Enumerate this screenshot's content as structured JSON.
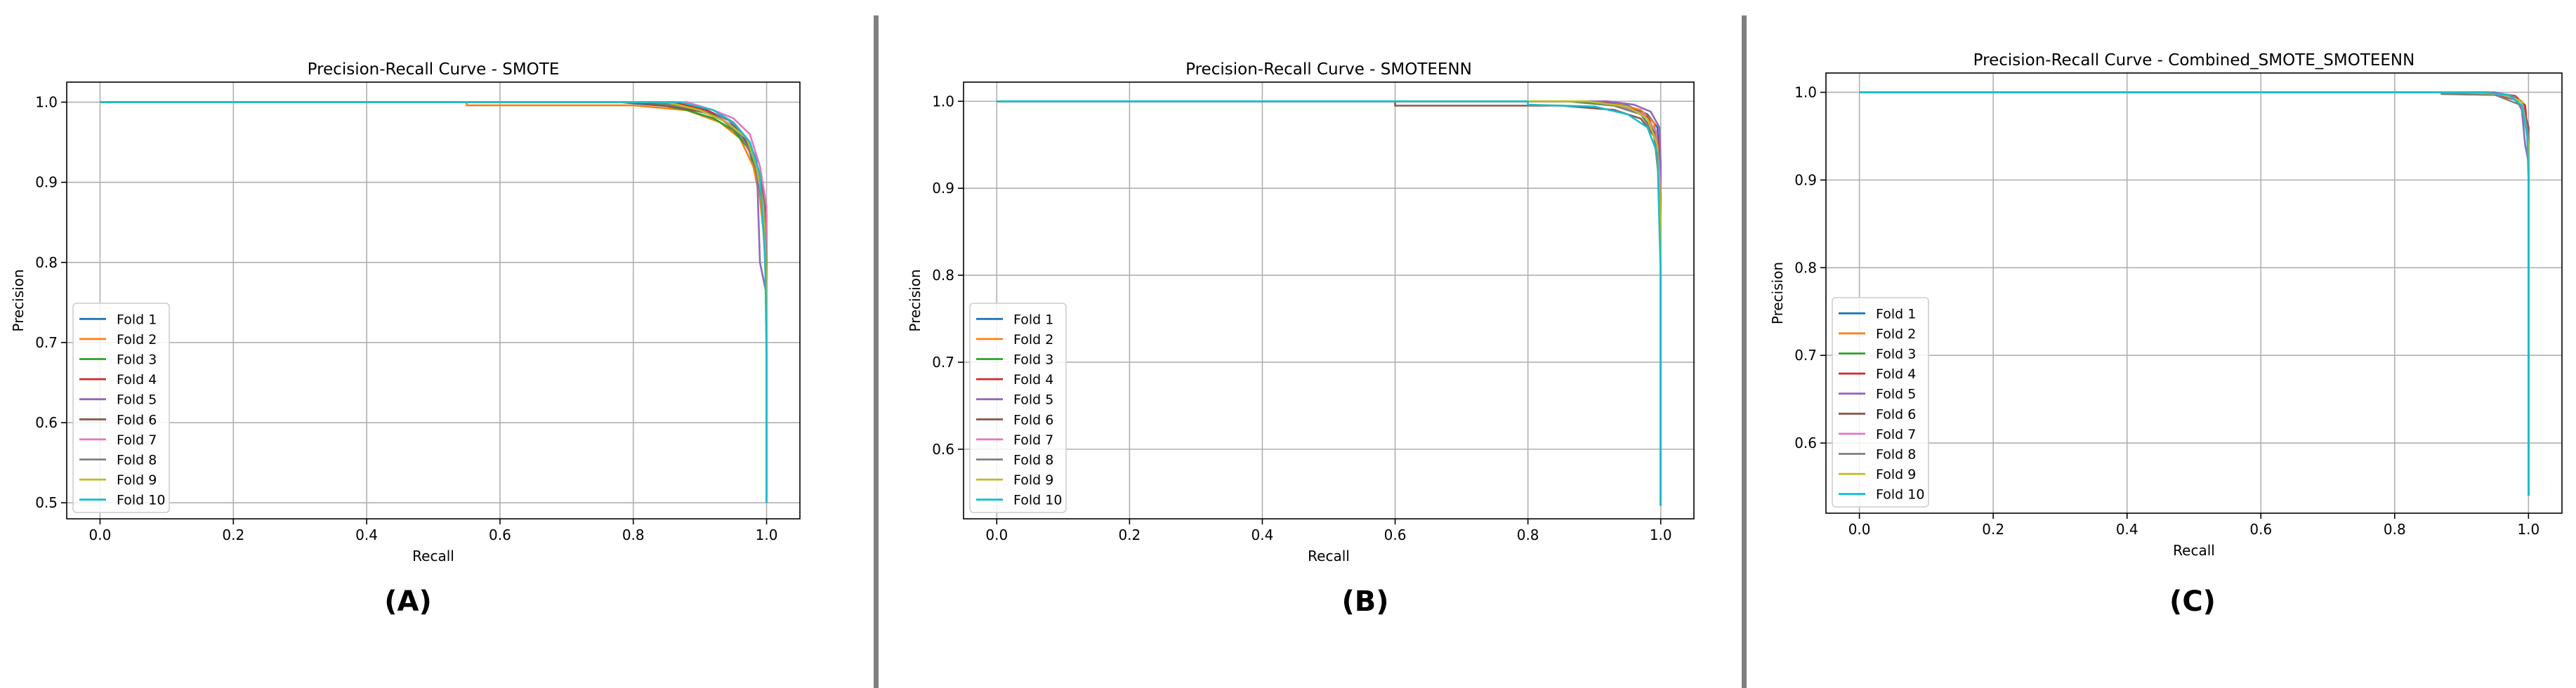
{
  "figure": {
    "legend_entries": [
      "Fold 1",
      "Fold 2",
      "Fold 3",
      "Fold 4",
      "Fold 5",
      "Fold 6",
      "Fold 7",
      "Fold 8",
      "Fold 9",
      "Fold 10"
    ],
    "series_colors": [
      "#1f77b4",
      "#ff7f0e",
      "#2ca02c",
      "#d62728",
      "#9467bd",
      "#8c564b",
      "#e377c2",
      "#7f7f7f",
      "#bcbd22",
      "#17becf"
    ]
  },
  "chart_data": [
    {
      "type": "line",
      "panel_label": "(A)",
      "title": "Precision-Recall Curve - SMOTE",
      "xlabel": "Recall",
      "ylabel": "Precision",
      "xlim": [
        -0.05,
        1.05
      ],
      "ylim": [
        0.48,
        1.025
      ],
      "xticks": [
        0.0,
        0.2,
        0.4,
        0.6,
        0.8,
        1.0
      ],
      "xtick_labels": [
        "0.0",
        "0.2",
        "0.4",
        "0.6",
        "0.8",
        "1.0"
      ],
      "yticks": [
        0.5,
        0.6,
        0.7,
        0.8,
        0.9,
        1.0
      ],
      "ytick_labels": [
        "0.5",
        "0.6",
        "0.7",
        "0.8",
        "0.9",
        "1.0"
      ],
      "grid": true,
      "legend_position": "lower-left",
      "series": [
        {
          "name": "Fold 1",
          "x": [
            0,
            0.78,
            0.85,
            0.9,
            0.94,
            0.97,
            0.985,
            0.995,
            1.0,
            1.0
          ],
          "y": [
            1,
            1,
            0.995,
            0.99,
            0.975,
            0.95,
            0.91,
            0.86,
            0.75,
            0.5
          ]
        },
        {
          "name": "Fold 2",
          "x": [
            0,
            0.55,
            0.55,
            0.8,
            0.88,
            0.93,
            0.96,
            0.98,
            0.99,
            1.0,
            1.0
          ],
          "y": [
            1,
            1,
            0.996,
            0.996,
            0.99,
            0.975,
            0.955,
            0.92,
            0.88,
            0.8,
            0.5
          ]
        },
        {
          "name": "Fold 3",
          "x": [
            0,
            0.82,
            0.88,
            0.92,
            0.95,
            0.975,
            0.99,
            1.0,
            1.0
          ],
          "y": [
            1,
            1,
            0.99,
            0.98,
            0.965,
            0.94,
            0.9,
            0.84,
            0.5
          ]
        },
        {
          "name": "Fold 4",
          "x": [
            0,
            0.86,
            0.91,
            0.95,
            0.975,
            0.99,
            1.0,
            1.0
          ],
          "y": [
            1,
            1,
            0.99,
            0.975,
            0.95,
            0.91,
            0.86,
            0.5
          ]
        },
        {
          "name": "Fold 5",
          "x": [
            0,
            0.84,
            0.9,
            0.94,
            0.965,
            0.985,
            0.99,
            1.0,
            1.0
          ],
          "y": [
            1,
            1,
            0.99,
            0.98,
            0.96,
            0.93,
            0.8,
            0.76,
            0.5
          ]
        },
        {
          "name": "Fold 6",
          "x": [
            0,
            0.8,
            0.87,
            0.92,
            0.96,
            0.98,
            0.995,
            1.0,
            1.0
          ],
          "y": [
            1,
            1,
            0.993,
            0.985,
            0.965,
            0.935,
            0.89,
            0.82,
            0.5
          ]
        },
        {
          "name": "Fold 7",
          "x": [
            0,
            0.88,
            0.92,
            0.95,
            0.975,
            0.99,
            1.0,
            1.0
          ],
          "y": [
            1,
            1,
            0.99,
            0.98,
            0.96,
            0.92,
            0.87,
            0.5
          ]
        },
        {
          "name": "Fold 8",
          "x": [
            0,
            0.83,
            0.89,
            0.93,
            0.96,
            0.98,
            0.995,
            1.0,
            1.0
          ],
          "y": [
            1,
            1,
            0.992,
            0.98,
            0.96,
            0.93,
            0.88,
            0.8,
            0.5
          ]
        },
        {
          "name": "Fold 9",
          "x": [
            0,
            0.85,
            0.9,
            0.94,
            0.97,
            0.985,
            0.995,
            1.0,
            1.0
          ],
          "y": [
            1,
            1,
            0.99,
            0.975,
            0.955,
            0.92,
            0.87,
            0.78,
            0.5
          ]
        },
        {
          "name": "Fold 10",
          "x": [
            0,
            0.87,
            0.92,
            0.95,
            0.975,
            0.99,
            0.998,
            1.0,
            1.0
          ],
          "y": [
            1,
            1,
            0.99,
            0.975,
            0.95,
            0.91,
            0.8,
            0.68,
            0.5
          ]
        }
      ]
    },
    {
      "type": "line",
      "panel_label": "(B)",
      "title": "Precision-Recall Curve - SMOTEENN",
      "xlabel": "Recall",
      "ylabel": "Precision",
      "xlim": [
        -0.05,
        1.05
      ],
      "ylim": [
        0.52,
        1.022
      ],
      "xticks": [
        0.0,
        0.2,
        0.4,
        0.6,
        0.8,
        1.0
      ],
      "xtick_labels": [
        "0.0",
        "0.2",
        "0.4",
        "0.6",
        "0.8",
        "1.0"
      ],
      "yticks": [
        0.6,
        0.7,
        0.8,
        0.9,
        1.0
      ],
      "ytick_labels": [
        "0.6",
        "0.7",
        "0.8",
        "0.9",
        "1.0"
      ],
      "grid": true,
      "legend_position": "lower-left",
      "series": [
        {
          "name": "Fold 1",
          "x": [
            0,
            0.9,
            0.95,
            0.98,
            0.995,
            1.0,
            1.0
          ],
          "y": [
            1,
            1,
            0.995,
            0.985,
            0.97,
            0.9,
            0.535
          ]
        },
        {
          "name": "Fold 2",
          "x": [
            0,
            0.88,
            0.94,
            0.97,
            0.99,
            1.0,
            1.0
          ],
          "y": [
            1,
            1,
            0.996,
            0.99,
            0.975,
            0.92,
            0.535
          ]
        },
        {
          "name": "Fold 3",
          "x": [
            0,
            0.86,
            0.93,
            0.97,
            0.99,
            1.0,
            1.0
          ],
          "y": [
            1,
            1,
            0.995,
            0.985,
            0.965,
            0.9,
            0.535
          ]
        },
        {
          "name": "Fold 4",
          "x": [
            0,
            0.9,
            0.95,
            0.98,
            0.995,
            1.0,
            1.0
          ],
          "y": [
            1,
            1,
            0.994,
            0.982,
            0.96,
            0.88,
            0.535
          ]
        },
        {
          "name": "Fold 5",
          "x": [
            0,
            0.92,
            0.96,
            0.985,
            0.998,
            1.0,
            1.0
          ],
          "y": [
            1,
            1,
            0.996,
            0.988,
            0.97,
            0.93,
            0.535
          ]
        },
        {
          "name": "Fold 6",
          "x": [
            0,
            0.6,
            0.6,
            0.85,
            0.93,
            0.97,
            0.99,
            1.0,
            1.0
          ],
          "y": [
            1,
            1,
            0.995,
            0.995,
            0.99,
            0.98,
            0.96,
            0.9,
            0.535
          ]
        },
        {
          "name": "Fold 7",
          "x": [
            0,
            0.88,
            0.94,
            0.975,
            0.993,
            1.0,
            1.0
          ],
          "y": [
            1,
            1,
            0.995,
            0.985,
            0.965,
            0.9,
            0.535
          ]
        },
        {
          "name": "Fold 8",
          "x": [
            0,
            0.87,
            0.93,
            0.97,
            0.99,
            1.0,
            1.0
          ],
          "y": [
            1,
            1,
            0.995,
            0.985,
            0.962,
            0.89,
            0.535
          ]
        },
        {
          "name": "Fold 9",
          "x": [
            0,
            0.89,
            0.95,
            0.98,
            0.995,
            1.0,
            1.0
          ],
          "y": [
            1,
            1,
            0.994,
            0.98,
            0.95,
            0.87,
            0.535
          ]
        },
        {
          "name": "Fold 10",
          "x": [
            0,
            0.8,
            0.8,
            0.9,
            0.95,
            0.98,
            0.995,
            1.0,
            1.0
          ],
          "y": [
            1,
            1,
            0.996,
            0.994,
            0.985,
            0.97,
            0.94,
            0.8,
            0.535
          ]
        }
      ]
    },
    {
      "type": "line",
      "panel_label": "(C)",
      "title": "Precision-Recall Curve - Combined_SMOTE_SMOTEENN",
      "xlabel": "Recall",
      "ylabel": "Precision",
      "xlim": [
        -0.05,
        1.05
      ],
      "ylim": [
        0.52,
        1.022
      ],
      "xticks": [
        0.0,
        0.2,
        0.4,
        0.6,
        0.8,
        1.0
      ],
      "xtick_labels": [
        "0.0",
        "0.2",
        "0.4",
        "0.6",
        "0.8",
        "1.0"
      ],
      "yticks": [
        0.6,
        0.7,
        0.8,
        0.9,
        1.0
      ],
      "ytick_labels": [
        "0.6",
        "0.7",
        "0.8",
        "0.9",
        "1.0"
      ],
      "grid": true,
      "legend_position": "lower-left",
      "series": [
        {
          "name": "Fold 1",
          "x": [
            0,
            0.93,
            0.97,
            0.99,
            1.0,
            1.0
          ],
          "y": [
            1,
            1,
            0.997,
            0.99,
            0.96,
            0.54
          ]
        },
        {
          "name": "Fold 2",
          "x": [
            0,
            0.9,
            0.96,
            0.99,
            1.0,
            1.0
          ],
          "y": [
            1,
            1,
            0.998,
            0.99,
            0.95,
            0.54
          ]
        },
        {
          "name": "Fold 3",
          "x": [
            0,
            0.92,
            0.97,
            0.99,
            1.0,
            1.0
          ],
          "y": [
            1,
            1,
            0.997,
            0.985,
            0.95,
            0.54
          ]
        },
        {
          "name": "Fold 4",
          "x": [
            0,
            0.94,
            0.98,
            0.995,
            1.0,
            1.0
          ],
          "y": [
            1,
            1,
            0.996,
            0.985,
            0.94,
            0.54
          ]
        },
        {
          "name": "Fold 5",
          "x": [
            0,
            0.95,
            0.98,
            0.99,
            0.995,
            1.0,
            1.0
          ],
          "y": [
            1,
            1,
            0.995,
            0.98,
            0.94,
            0.92,
            0.54
          ]
        },
        {
          "name": "Fold 6",
          "x": [
            0,
            0.88,
            0.88,
            0.95,
            0.99,
            1.0,
            1.0
          ],
          "y": [
            1,
            1,
            0.998,
            0.997,
            0.99,
            0.96,
            0.54
          ]
        },
        {
          "name": "Fold 7",
          "x": [
            0,
            0.91,
            0.96,
            0.99,
            1.0,
            1.0
          ],
          "y": [
            1,
            1,
            0.997,
            0.99,
            0.95,
            0.54
          ]
        },
        {
          "name": "Fold 8",
          "x": [
            0,
            0.87,
            0.87,
            0.95,
            0.99,
            1.0,
            1.0
          ],
          "y": [
            1,
            1,
            0.998,
            0.997,
            0.985,
            0.95,
            0.54
          ]
        },
        {
          "name": "Fold 9",
          "x": [
            0,
            0.9,
            0.96,
            0.99,
            1.0,
            1.0
          ],
          "y": [
            1,
            1,
            0.998,
            0.99,
            0.94,
            0.54
          ]
        },
        {
          "name": "Fold 10",
          "x": [
            0,
            0.93,
            0.97,
            0.99,
            0.998,
            1.0,
            1.0
          ],
          "y": [
            1,
            1,
            0.997,
            0.985,
            0.95,
            0.9,
            0.54
          ]
        }
      ]
    }
  ]
}
